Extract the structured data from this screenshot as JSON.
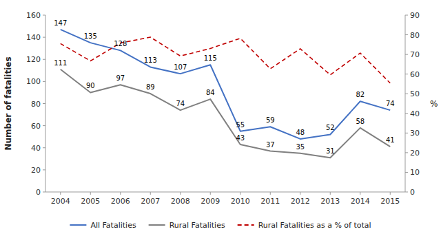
{
  "chart_data": {
    "type": "line",
    "x": [
      2004,
      2005,
      2006,
      2007,
      2008,
      2009,
      2010,
      2011,
      2012,
      2013,
      2014,
      2015
    ],
    "xlim": [
      2003.5,
      2015.5
    ],
    "xticks": [
      2004,
      2005,
      2006,
      2007,
      2008,
      2009,
      2010,
      2011,
      2012,
      2013,
      2014,
      2015
    ],
    "ylabel": "Number of fatalities",
    "y2label": "%",
    "ylim": [
      0,
      160
    ],
    "yticks": [
      0,
      20,
      40,
      60,
      80,
      100,
      120,
      140,
      160
    ],
    "y2lim": [
      0,
      90
    ],
    "y2ticks": [
      0,
      10,
      20,
      30,
      40,
      50,
      60,
      70,
      80,
      90
    ],
    "grid": false,
    "legend": "bottom",
    "series": [
      {
        "name": "All Fatalities",
        "color": "#4472C4",
        "line_style": "solid",
        "data_labels": true,
        "values": [
          147,
          135,
          128,
          113,
          107,
          115,
          55,
          59,
          48,
          52,
          82,
          74
        ]
      },
      {
        "name": "Rural Fatalities",
        "color": "#808080",
        "line_style": "solid",
        "data_labels": true,
        "values": [
          111,
          90,
          97,
          89,
          74,
          84,
          43,
          37,
          35,
          31,
          58,
          41
        ]
      },
      {
        "name": "Rural Fatalities as a % of total",
        "color": "#C00000",
        "line_style": "dashed",
        "axis": "y2",
        "values": [
          75.5,
          66.7,
          75.8,
          78.8,
          69.2,
          73.0,
          78.2,
          62.7,
          72.9,
          59.6,
          70.7,
          55.4
        ]
      }
    ]
  }
}
